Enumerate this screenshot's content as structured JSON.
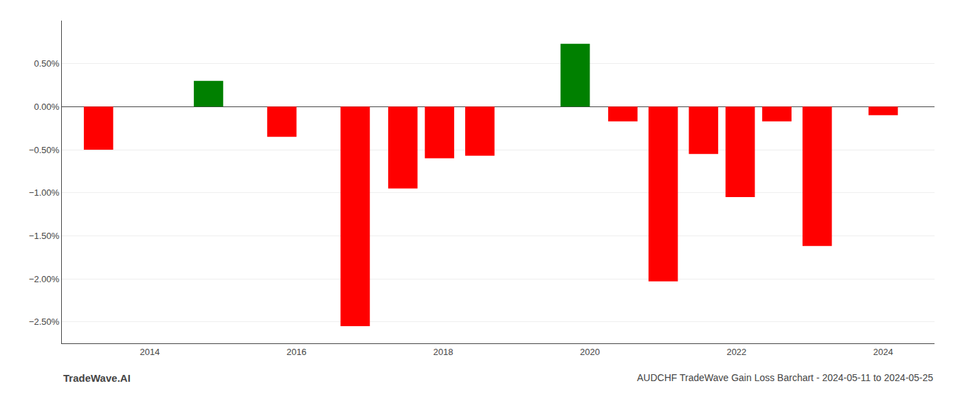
{
  "chart_data": {
    "type": "bar",
    "title": "AUDCHF TradeWave Gain Loss Barchart - 2024-05-11 to 2024-05-25",
    "annotations": [
      "TradeWave.AI"
    ],
    "x": [
      2013.3,
      2014.8,
      2015.8,
      2016.8,
      2017.45,
      2017.95,
      2018.5,
      2019.8,
      2020.45,
      2021.0,
      2021.55,
      2022.05,
      2022.55,
      2023.1,
      2024.0
    ],
    "values": [
      -0.5,
      0.3,
      -0.35,
      -2.55,
      -0.95,
      -0.6,
      -0.57,
      0.73,
      -0.17,
      -2.03,
      -0.55,
      -1.05,
      -0.17,
      -1.62,
      -0.1
    ],
    "colors": [
      "#FF0000",
      "#008000",
      "#FF0000",
      "#FF0000",
      "#FF0000",
      "#FF0000",
      "#FF0000",
      "#008000",
      "#FF0000",
      "#FF0000",
      "#FF0000",
      "#FF0000",
      "#FF0000",
      "#FF0000",
      "#FF0000"
    ],
    "xlim": [
      2012.8,
      2024.7
    ],
    "xticks": [
      2014,
      2016,
      2018,
      2020,
      2022,
      2024
    ],
    "ylim": [
      -2.75,
      1.0
    ],
    "yticks": [
      {
        "value": -2.5,
        "label": "−2.50%"
      },
      {
        "value": -2.0,
        "label": "−2.00%"
      },
      {
        "value": -1.5,
        "label": "−1.50%"
      },
      {
        "value": -1.0,
        "label": "−1.00%"
      },
      {
        "value": -0.5,
        "label": "−0.50%"
      },
      {
        "value": 0.0,
        "label": "0.00%"
      },
      {
        "value": 0.5,
        "label": "0.50%"
      }
    ],
    "grid": true
  }
}
